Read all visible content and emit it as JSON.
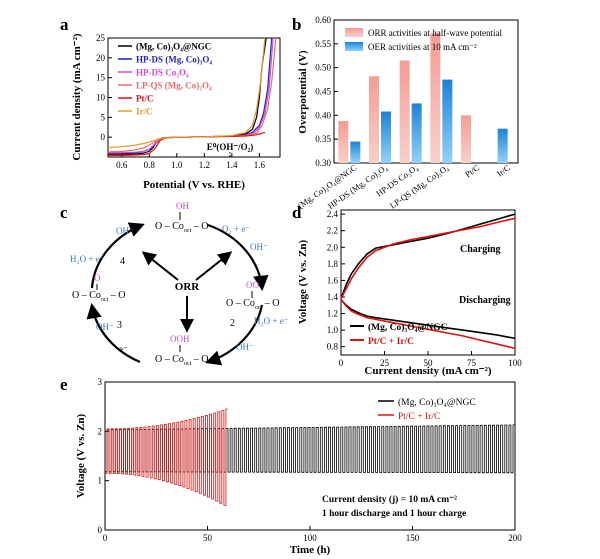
{
  "panels": {
    "a": {
      "letter": "a",
      "xlabel": "Potential (V vs. RHE)",
      "ylabel": "Current density (mA cm⁻²)",
      "xticks": [
        "0.6",
        "0.8",
        "1.0",
        "1.2",
        "1.4",
        "1.6"
      ],
      "yticks": [
        "0",
        "5",
        "10",
        "15",
        "20",
        "25"
      ],
      "annotation": "E⁰(OH⁻/O₂)",
      "legend": [
        "(Mg, Co)₃O₄@NGC",
        "HP-DS (Mg, Co)₃O₄",
        "HP-DS Co₃O₄",
        "LP-QS (Mg, Co)₃O₄",
        "Pt/C",
        "Ir/C"
      ]
    },
    "b": {
      "letter": "b",
      "ylabel": "Overpotential (V)",
      "yticks": [
        "0.30",
        "0.35",
        "0.40",
        "0.45",
        "0.50",
        "0.55",
        "0.60"
      ],
      "legend": [
        "ORR activities at half-wave potential",
        "OER activities at 10 mA cm⁻²"
      ],
      "categories": [
        "(Mg, Co)₃O₄@NGC",
        "HP-DS (Mg, Co)₃O₄",
        "HP-DS Co₃O₄",
        "LP-QS (Mg, Co)₃O₄",
        "Pt/C",
        "Ir/C"
      ]
    },
    "c": {
      "letter": "c",
      "center": "ORR",
      "labels": {
        "top_sub": "OH",
        "top_chain": "O – Co",
        "top_oct": "oct",
        "top_tail": " – O",
        "right_sub": "OO",
        "right_chain": "O – Co",
        "right_oct": "oct",
        "right_tail": " – O",
        "bottom_sub": "OOH",
        "bottom_chain": "O – Co",
        "bottom_oct": "oct",
        "bottom_tail": " – O",
        "left_sub": "O",
        "left_chain": "O – Co",
        "left_oct": "oct",
        "left_tail": " – O",
        "step1": "1",
        "step2": "2",
        "step3": "3",
        "step4": "4",
        "s1_in": "O₂ + e⁻",
        "s1_out": "OH⁻",
        "s2_in": "H₂O + e⁻",
        "s2_out": "OH⁻",
        "s3_in": "OH⁻",
        "s3_out": "e⁻",
        "s4_in": "H₂O + e⁻",
        "s4_out": "OH⁻"
      }
    },
    "d": {
      "letter": "d",
      "xlabel": "Current density (mA cm⁻²)",
      "ylabel": "Voltage (V vs. Zn)",
      "xticks": [
        "0",
        "25",
        "50",
        "75",
        "100"
      ],
      "yticks": [
        "0.8",
        "1.0",
        "1.2",
        "1.4",
        "1.6",
        "1.8",
        "2.0",
        "2.2",
        "2.4"
      ],
      "charging": "Charging",
      "discharging": "Discharging",
      "legend": [
        "(Mg, Co)₃O₄@NGC",
        "Pt/C + Ir/C"
      ]
    },
    "e": {
      "letter": "e",
      "xlabel": "Time (h)",
      "ylabel": "Voltage (V vs. Zn)",
      "xticks": [
        "0",
        "50",
        "100",
        "150",
        "200"
      ],
      "yticks": [
        "0",
        "1",
        "2",
        "3"
      ],
      "legend": [
        "(Mg, Co)₃O₄@NGC",
        "Pt/C + Ir/C"
      ],
      "note1": "Current density (j) = 10 mA cm⁻²",
      "note2": "1 hour discharge and 1 hour charge"
    }
  },
  "colors": {
    "ngc": "#000000",
    "hpds_mgco": "#1f1fd0",
    "hpds_co": "#d24cd6",
    "lpqs": "#ef6b6b",
    "ptc": "#e01010",
    "irc": "#e49a2a",
    "orr_bar_top": "#f7c9c2",
    "orr_bar_bottom": "#f59c95",
    "oer_bar_top": "#8fd0f5",
    "oer_bar_bottom": "#1c83d8",
    "pink_text": "#d24cd6",
    "blue_text": "#3a78c9"
  },
  "chart_data": [
    {
      "type": "line",
      "panel": "a",
      "xlabel": "Potential (V vs. RHE)",
      "ylabel": "Current density (mA cm⁻²)",
      "xlim": [
        0.5,
        1.75
      ],
      "ylim": [
        -5,
        25
      ],
      "series": [
        {
          "name": "(Mg, Co)₃O₄@NGC",
          "x": [
            0.5,
            0.6,
            0.7,
            0.75,
            0.8,
            0.83,
            0.86,
            0.9,
            1.0,
            1.2,
            1.4,
            1.5,
            1.55,
            1.58,
            1.6,
            1.62,
            1.65
          ],
          "y": [
            -4.3,
            -4.3,
            -4.2,
            -4.1,
            -3.6,
            -2.5,
            -0.6,
            -0.2,
            0,
            0.1,
            0.3,
            0.8,
            2,
            5,
            10,
            18,
            25
          ]
        },
        {
          "name": "HP-DS (Mg, Co)₃O₄",
          "x": [
            0.5,
            0.6,
            0.7,
            0.75,
            0.8,
            0.84,
            0.88,
            0.92,
            1.0,
            1.2,
            1.4,
            1.5,
            1.55,
            1.6,
            1.63,
            1.66,
            1.69
          ],
          "y": [
            -4.0,
            -4.0,
            -3.9,
            -3.7,
            -3.1,
            -1.8,
            -0.5,
            -0.1,
            0,
            0.1,
            0.3,
            0.6,
            1.2,
            3,
            6,
            12,
            25
          ]
        },
        {
          "name": "HP-DS Co₃O₄",
          "x": [
            0.5,
            0.6,
            0.7,
            0.76,
            0.8,
            0.84,
            0.88,
            0.92,
            1.0,
            1.2,
            1.4,
            1.5,
            1.56,
            1.6,
            1.64,
            1.67,
            1.7
          ],
          "y": [
            -3.9,
            -3.9,
            -3.8,
            -3.6,
            -3.0,
            -1.7,
            -0.5,
            -0.1,
            0,
            0.1,
            0.3,
            0.5,
            1,
            2.5,
            6,
            12,
            25
          ]
        },
        {
          "name": "LP-QS (Mg, Co)₃O₄",
          "x": [
            0.5,
            0.6,
            0.68,
            0.75,
            0.8,
            0.85,
            0.9,
            0.95,
            1.0,
            1.2,
            1.4,
            1.5,
            1.58,
            1.62,
            1.66,
            1.69,
            1.72
          ],
          "y": [
            -3.7,
            -3.6,
            -3.3,
            -2.8,
            -2.0,
            -1.0,
            -0.3,
            -0.1,
            0,
            0.1,
            0.2,
            0.4,
            1,
            3,
            7,
            14,
            25
          ]
        },
        {
          "name": "Pt/C",
          "x": [
            0.5,
            0.6,
            0.7,
            0.76,
            0.8,
            0.84,
            0.88,
            0.92,
            1.0,
            1.2,
            1.4,
            1.5,
            1.56,
            1.6,
            1.64
          ],
          "y": [
            -4.6,
            -4.6,
            -4.5,
            -4.4,
            -4.1,
            -2.9,
            -0.8,
            -0.2,
            0,
            0.1,
            0.2,
            0.3,
            0.5,
            0.8,
            1.2
          ]
        },
        {
          "name": "Ir/C",
          "x": [
            0.5,
            0.6,
            0.7,
            0.76,
            0.8,
            0.85,
            0.9,
            0.95,
            1.0,
            1.2,
            1.4,
            1.5,
            1.55,
            1.58,
            1.61,
            1.64
          ],
          "y": [
            -2.6,
            -2.4,
            -2.0,
            -1.6,
            -1.2,
            -0.7,
            -0.3,
            -0.1,
            0,
            0.1,
            0.4,
            1.2,
            3,
            7,
            14,
            25
          ]
        }
      ],
      "annotation": {
        "text": "E⁰(OH⁻/O₂)",
        "x": 1.23
      }
    },
    {
      "type": "bar",
      "panel": "b",
      "ylabel": "Overpotential (V)",
      "ylim": [
        0.3,
        0.6
      ],
      "categories": [
        "(Mg, Co)₃O₄@NGC",
        "HP-DS (Mg, Co)₃O₄",
        "HP-DS Co₃O₄",
        "LP-QS (Mg, Co)₃O₄",
        "Pt/C",
        "Ir/C"
      ],
      "series": [
        {
          "name": "ORR activities at half-wave potential",
          "values": [
            0.388,
            0.482,
            0.515,
            0.572,
            0.4,
            null
          ]
        },
        {
          "name": "OER activities at 10 mA cm⁻²",
          "values": [
            0.345,
            0.408,
            0.425,
            0.475,
            null,
            0.372
          ]
        }
      ]
    },
    {
      "type": "line",
      "panel": "d",
      "xlabel": "Current density (mA cm⁻²)",
      "ylabel": "Voltage (V vs. Zn)",
      "xlim": [
        0,
        100
      ],
      "ylim": [
        0.7,
        2.45
      ],
      "series": [
        {
          "name": "(Mg, Co)₃O₄@NGC charge",
          "x": [
            0,
            3,
            6,
            10,
            15,
            20,
            30,
            40,
            50,
            60,
            70,
            80,
            90,
            100
          ],
          "y": [
            1.38,
            1.55,
            1.68,
            1.8,
            1.92,
            1.99,
            2.03,
            2.07,
            2.11,
            2.16,
            2.22,
            2.28,
            2.34,
            2.4
          ]
        },
        {
          "name": "Pt/C + Ir/C charge",
          "x": [
            0,
            3,
            6,
            10,
            15,
            20,
            30,
            40,
            50,
            60,
            70,
            80,
            90,
            100
          ],
          "y": [
            1.38,
            1.5,
            1.62,
            1.75,
            1.88,
            1.96,
            2.04,
            2.09,
            2.13,
            2.17,
            2.21,
            2.25,
            2.3,
            2.35
          ]
        },
        {
          "name": "(Mg, Co)₃O₄@NGC discharge",
          "x": [
            0,
            3,
            6,
            10,
            15,
            20,
            30,
            40,
            50,
            60,
            70,
            80,
            90,
            100
          ],
          "y": [
            1.37,
            1.3,
            1.25,
            1.21,
            1.17,
            1.15,
            1.12,
            1.09,
            1.06,
            1.03,
            1.0,
            0.97,
            0.94,
            0.9
          ]
        },
        {
          "name": "Pt/C + Ir/C discharge",
          "x": [
            0,
            3,
            6,
            10,
            15,
            20,
            30,
            40,
            50,
            60,
            70,
            80,
            90,
            100
          ],
          "y": [
            1.37,
            1.29,
            1.23,
            1.19,
            1.15,
            1.13,
            1.09,
            1.05,
            1.01,
            0.97,
            0.93,
            0.88,
            0.83,
            0.78
          ]
        }
      ]
    },
    {
      "type": "line",
      "panel": "e",
      "xlabel": "Time (h)",
      "ylabel": "Voltage (V vs. Zn)",
      "xlim": [
        0,
        200
      ],
      "ylim": [
        0,
        3
      ],
      "series": [
        {
          "name": "(Mg, Co)₃O₄@NGC",
          "cycle_period_h": 2,
          "duration_h": 200,
          "charge_v": [
            2.03,
            2.13
          ],
          "discharge_v": [
            1.18,
            1.16
          ]
        },
        {
          "name": "Pt/C + Ir/C",
          "cycle_period_h": 2,
          "duration_h": 60,
          "charge_v": [
            2.05,
            2.45
          ],
          "discharge_v": [
            1.15,
            0.5
          ]
        }
      ]
    }
  ]
}
